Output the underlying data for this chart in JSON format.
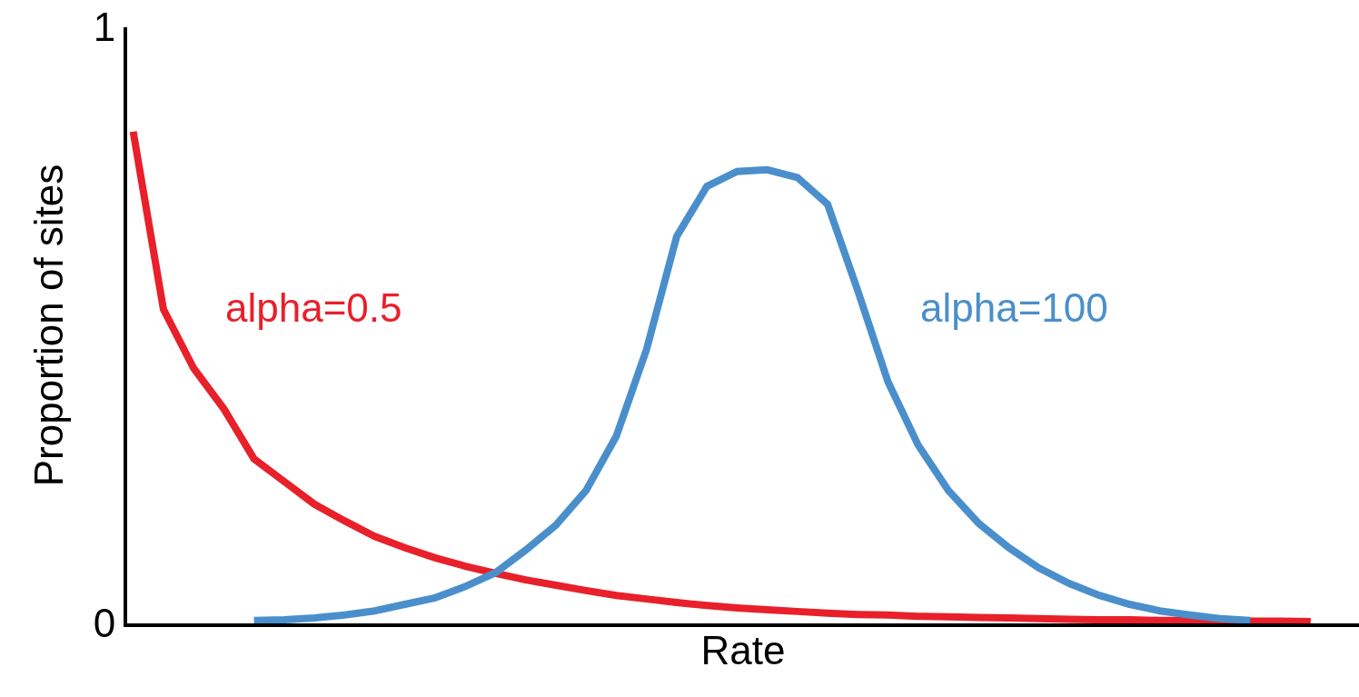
{
  "chart_data": {
    "type": "line",
    "xlabel": "Rate",
    "ylabel": "Proportion of sites",
    "categories": [
      null,
      null,
      null,
      null,
      null,
      null,
      null,
      null,
      null,
      null,
      null,
      null,
      null,
      null,
      null,
      null,
      null,
      null,
      null,
      null,
      null,
      null,
      null,
      null,
      null,
      null,
      null,
      null,
      null,
      null,
      null,
      null,
      null,
      null,
      null,
      null,
      null,
      null,
      null,
      null
    ],
    "ylim": [
      0,
      1
    ],
    "yticks": [
      0,
      1
    ],
    "legend": false,
    "marker": "none",
    "line_style": "solid",
    "series": [
      {
        "name": "alpha=0.5",
        "color": "#e8202a",
        "values": [
          0.825,
          0.527,
          0.428,
          0.36,
          0.276,
          0.238,
          0.2,
          0.172,
          0.146,
          0.127,
          0.11,
          0.096,
          0.084,
          0.073,
          0.064,
          0.055,
          0.047,
          0.041,
          0.035,
          0.03,
          0.026,
          0.023,
          0.02,
          0.017,
          0.015,
          0.014,
          0.012,
          0.011,
          0.01,
          0.009,
          0.008,
          0.007,
          0.006,
          0.006,
          0.005,
          0.005,
          0.004,
          0.004,
          0.004,
          0.003
        ]
      },
      {
        "name": "alpha=100",
        "color": "#4a8fcc",
        "values": [
          null,
          null,
          null,
          null,
          0.005,
          0.006,
          0.009,
          0.014,
          0.021,
          0.032,
          0.043,
          0.062,
          0.085,
          0.123,
          0.165,
          0.223,
          0.314,
          0.459,
          0.649,
          0.733,
          0.758,
          0.761,
          0.748,
          0.703,
          0.558,
          0.405,
          0.299,
          0.223,
          0.168,
          0.127,
          0.093,
          0.067,
          0.047,
          0.032,
          0.021,
          0.014,
          0.008,
          0.005,
          null,
          null
        ]
      }
    ]
  }
}
